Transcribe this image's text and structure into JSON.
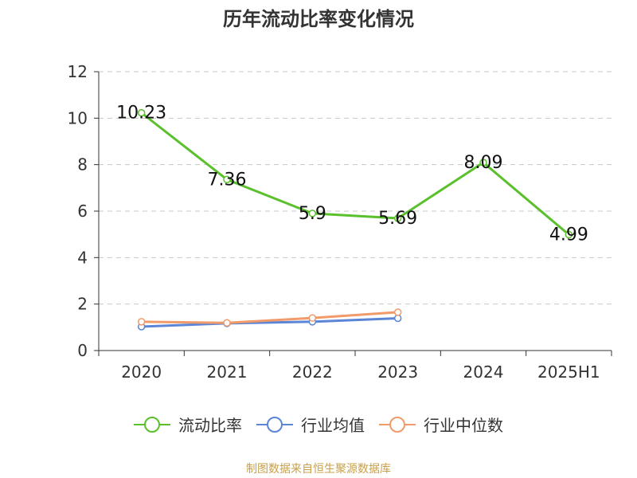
{
  "title": "历年流动比率变化情况",
  "source": "制图数据来自恒生聚源数据库",
  "colors": {
    "green": "#5ac02c",
    "blue": "#5b86d6",
    "orange": "#f19a6a",
    "grid": "#c8c8c8",
    "axis": "#333333"
  },
  "chart_data": {
    "type": "line",
    "categories": [
      "2020",
      "2021",
      "2022",
      "2023",
      "2024",
      "2025H1"
    ],
    "ylim": [
      0,
      12
    ],
    "yticks": [
      0,
      2,
      4,
      6,
      8,
      10,
      12
    ],
    "grid": "horizontal dashed",
    "legend_position": "bottom",
    "series": [
      {
        "name": "流动比率",
        "color": "#5ac02c",
        "values": [
          10.23,
          7.36,
          5.9,
          5.69,
          8.09,
          4.99
        ],
        "labels": [
          "10.23",
          "7.36",
          "5.9",
          "5.69",
          "8.09",
          "4.99"
        ]
      },
      {
        "name": "行业均值",
        "color": "#5b86d6",
        "values": [
          1.03,
          1.17,
          1.24,
          1.39,
          null,
          null
        ]
      },
      {
        "name": "行业中位数",
        "color": "#f19a6a",
        "values": [
          1.24,
          1.19,
          1.4,
          1.65,
          null,
          null
        ]
      }
    ]
  }
}
